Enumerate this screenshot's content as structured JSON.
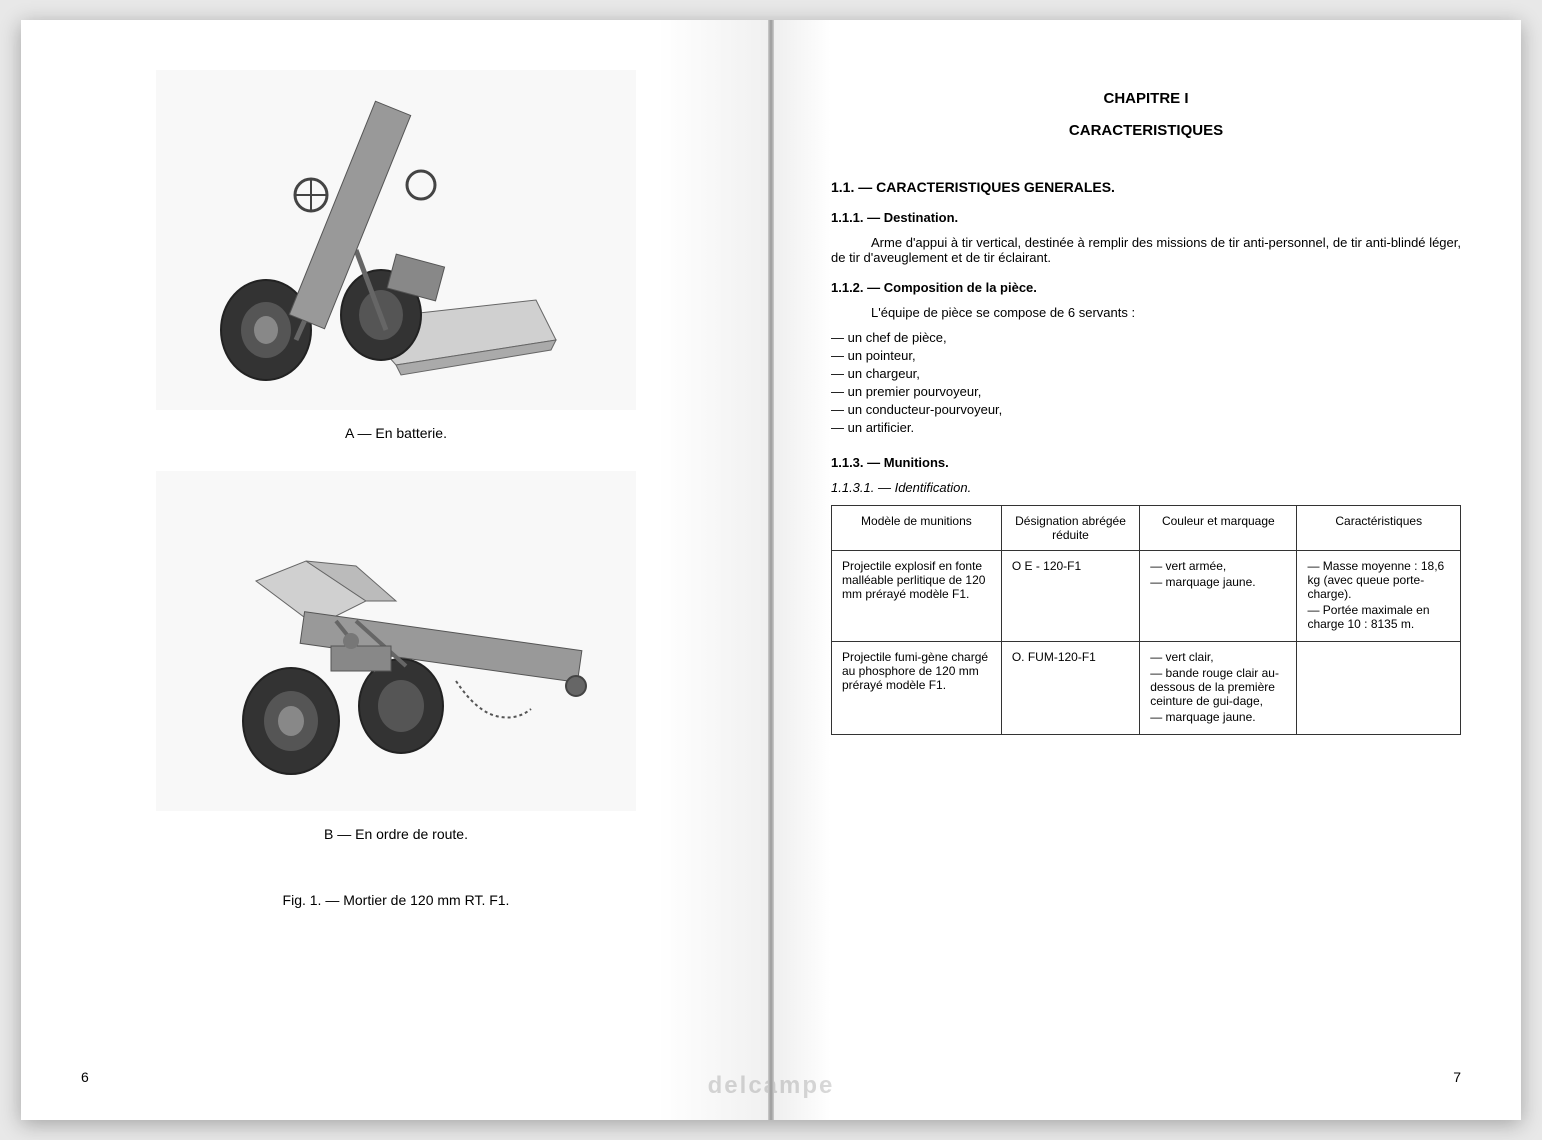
{
  "leftPage": {
    "pageNumber": "6",
    "figureA": {
      "label": "A  —  En batterie."
    },
    "figureB": {
      "label": "B  —  En ordre de route."
    },
    "figureTitle": "Fig. 1. — Mortier de 120 mm RT. F1."
  },
  "rightPage": {
    "pageNumber": "7",
    "chapterTitle": "CHAPITRE I",
    "chapterSubtitle": "CARACTERISTIQUES",
    "section1": {
      "heading": "1.1. — CARACTERISTIQUES GENERALES.",
      "subsection1": {
        "heading": "1.1.1. — Destination.",
        "text": "Arme d'appui à tir vertical, destinée à remplir des missions de tir anti-personnel, de tir anti-blindé léger, de tir d'aveuglement et de tir éclairant."
      },
      "subsection2": {
        "heading": "1.1.2. — Composition de la pièce.",
        "intro": "L'équipe de pièce se compose de 6 servants :",
        "items": [
          "un chef de pièce,",
          "un pointeur,",
          "un chargeur,",
          "un premier pourvoyeur,",
          "un conducteur-pourvoyeur,",
          "un artificier."
        ]
      },
      "subsection3": {
        "heading": "1.1.3. — Munitions.",
        "subheading": "1.1.3.1. — Identification."
      }
    },
    "table": {
      "columns": [
        "Modèle de munitions",
        "Désignation abrégée réduite",
        "Couleur et marquage",
        "Caractéristiques"
      ],
      "columnWidths": [
        "27%",
        "22%",
        "25%",
        "26%"
      ],
      "rows": [
        {
          "model": "Projectile explosif en fonte malléable perlitique de 120 mm prérayé modèle F1.",
          "designation": "O  E - 120-F1",
          "color": [
            "vert armée,",
            "marquage jaune."
          ],
          "characteristics": [
            "Masse moyenne : 18,6 kg (avec queue porte-charge).",
            "Portée maximale en charge 10 : 8135 m."
          ]
        },
        {
          "model": "Projectile fumi-gène chargé au phosphore de 120 mm prérayé modèle F1.",
          "designation": "O. FUM-120-F1",
          "color": [
            "vert clair,",
            "bande rouge clair au-dessous de la première ceinture de gui-dage,",
            "marquage jaune."
          ],
          "characteristics": []
        }
      ]
    }
  },
  "watermark": "delcampe",
  "colors": {
    "pageBackground": "#ffffff",
    "tableBorder": "#333333",
    "textColor": "#000000",
    "imageBackground": "#f8f8f8"
  }
}
